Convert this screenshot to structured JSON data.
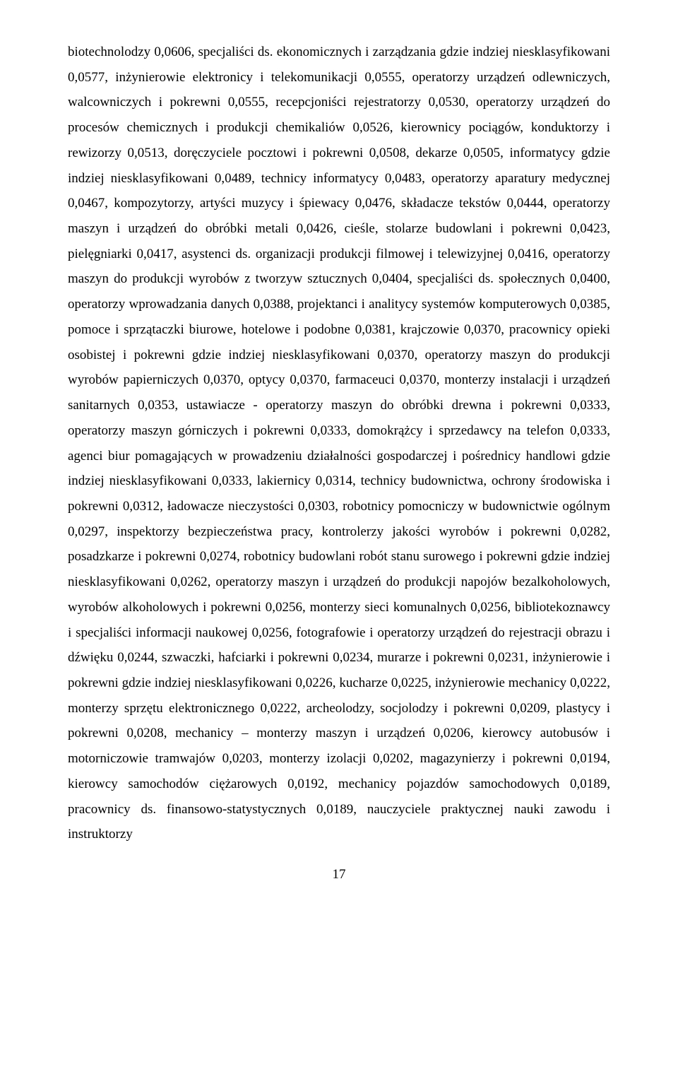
{
  "body_text": "biotechnolodzy 0,0606, specjaliści ds. ekonomicznych i zarządzania gdzie indziej niesklasyfikowani 0,0577, inżynierowie elektronicy i telekomunikacji 0,0555, operatorzy urządzeń odlewniczych, walcowniczych i pokrewni 0,0555, recepcjoniści rejestratorzy 0,0530, operatorzy urządzeń do procesów chemicznych i produkcji chemikaliów 0,0526, kierownicy pociągów, konduktorzy i rewizorzy 0,0513, doręczyciele pocztowi i pokrewni 0,0508, dekarze 0,0505, informatycy gdzie indziej niesklasyfikowani 0,0489, technicy informatycy 0,0483, operatorzy aparatury medycznej 0,0467, kompozytorzy, artyści muzycy i śpiewacy 0,0476, składacze tekstów 0,0444, operatorzy maszyn i urządzeń do obróbki metali 0,0426, cieśle, stolarze budowlani i pokrewni 0,0423, pielęgniarki 0,0417, asystenci ds. organizacji produkcji filmowej i telewizyjnej 0,0416, operatorzy maszyn do produkcji wyrobów z tworzyw sztucznych 0,0404, specjaliści ds. społecznych 0,0400, operatorzy wprowadzania danych 0,0388, projektanci i analitycy systemów komputerowych 0,0385, pomoce i sprzątaczki biurowe, hotelowe i podobne 0,0381, krajczowie 0,0370, pracownicy opieki osobistej i pokrewni gdzie indziej niesklasyfikowani 0,0370, operatorzy maszyn do produkcji wyrobów papierniczych 0,0370, optycy 0,0370, farmaceuci 0,0370, monterzy instalacji i urządzeń sanitarnych 0,0353, ustawiacze - operatorzy maszyn do obróbki drewna i pokrewni 0,0333, operatorzy maszyn górniczych i pokrewni 0,0333, domokrążcy i sprzedawcy na telefon 0,0333, agenci biur pomagających w prowadzeniu działalności gospodarczej i pośrednicy handlowi gdzie indziej niesklasyfikowani 0,0333, lakiernicy 0,0314, technicy budownictwa, ochrony środowiska i pokrewni 0,0312, ładowacze nieczystości 0,0303, robotnicy pomocniczy w budownictwie ogólnym 0,0297, inspektorzy bezpieczeństwa pracy, kontrolerzy jakości wyrobów i pokrewni 0,0282, posadzkarze i pokrewni 0,0274, robotnicy budowlani robót stanu surowego i pokrewni gdzie indziej niesklasyfikowani 0,0262, operatorzy maszyn i urządzeń do produkcji napojów bezalkoholowych, wyrobów alkoholowych i pokrewni 0,0256, monterzy sieci komunalnych 0,0256, bibliotekoznawcy i specjaliści informacji naukowej 0,0256, fotografowie i operatorzy urządzeń do rejestracji obrazu i dźwięku 0,0244, szwaczki, hafciarki i pokrewni 0,0234, murarze i pokrewni 0,0231, inżynierowie i pokrewni gdzie indziej niesklasyfikowani 0,0226, kucharze 0,0225, inżynierowie mechanicy 0,0222, monterzy sprzętu elektronicznego 0,0222, archeolodzy, socjolodzy i pokrewni 0,0209, plastycy i pokrewni 0,0208, mechanicy – monterzy maszyn i urządzeń 0,0206, kierowcy autobusów i motorniczowie tramwajów 0,0203, monterzy izolacji 0,0202, magazynierzy i pokrewni 0,0194, kierowcy samochodów ciężarowych 0,0192, mechanicy pojazdów samochodowych 0,0189, pracownicy ds. finansowo-statystycznych 0,0189, nauczyciele praktycznej nauki zawodu i instruktorzy",
  "page_number": "17"
}
